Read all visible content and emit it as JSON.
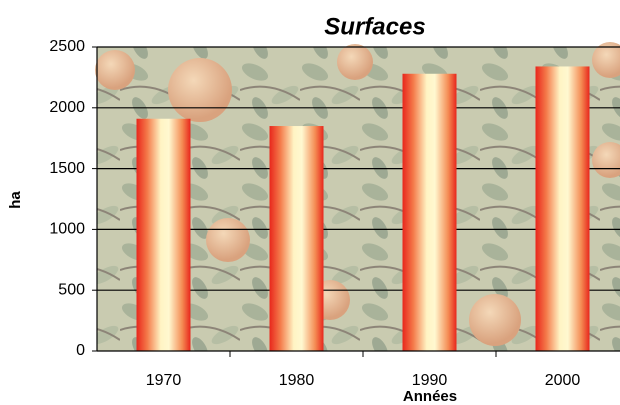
{
  "chart_data": {
    "type": "bar",
    "title": "Surfaces",
    "x_label": "Années",
    "y_label": "ha",
    "categories": [
      "1970",
      "1980",
      "1990",
      "2000"
    ],
    "values": [
      1910,
      1850,
      2280,
      2340
    ],
    "color": "#e8261c",
    "ylim": [
      0,
      2500
    ],
    "yticks": [
      0,
      500,
      1000,
      1500,
      2000,
      2500
    ],
    "grid": true
  }
}
